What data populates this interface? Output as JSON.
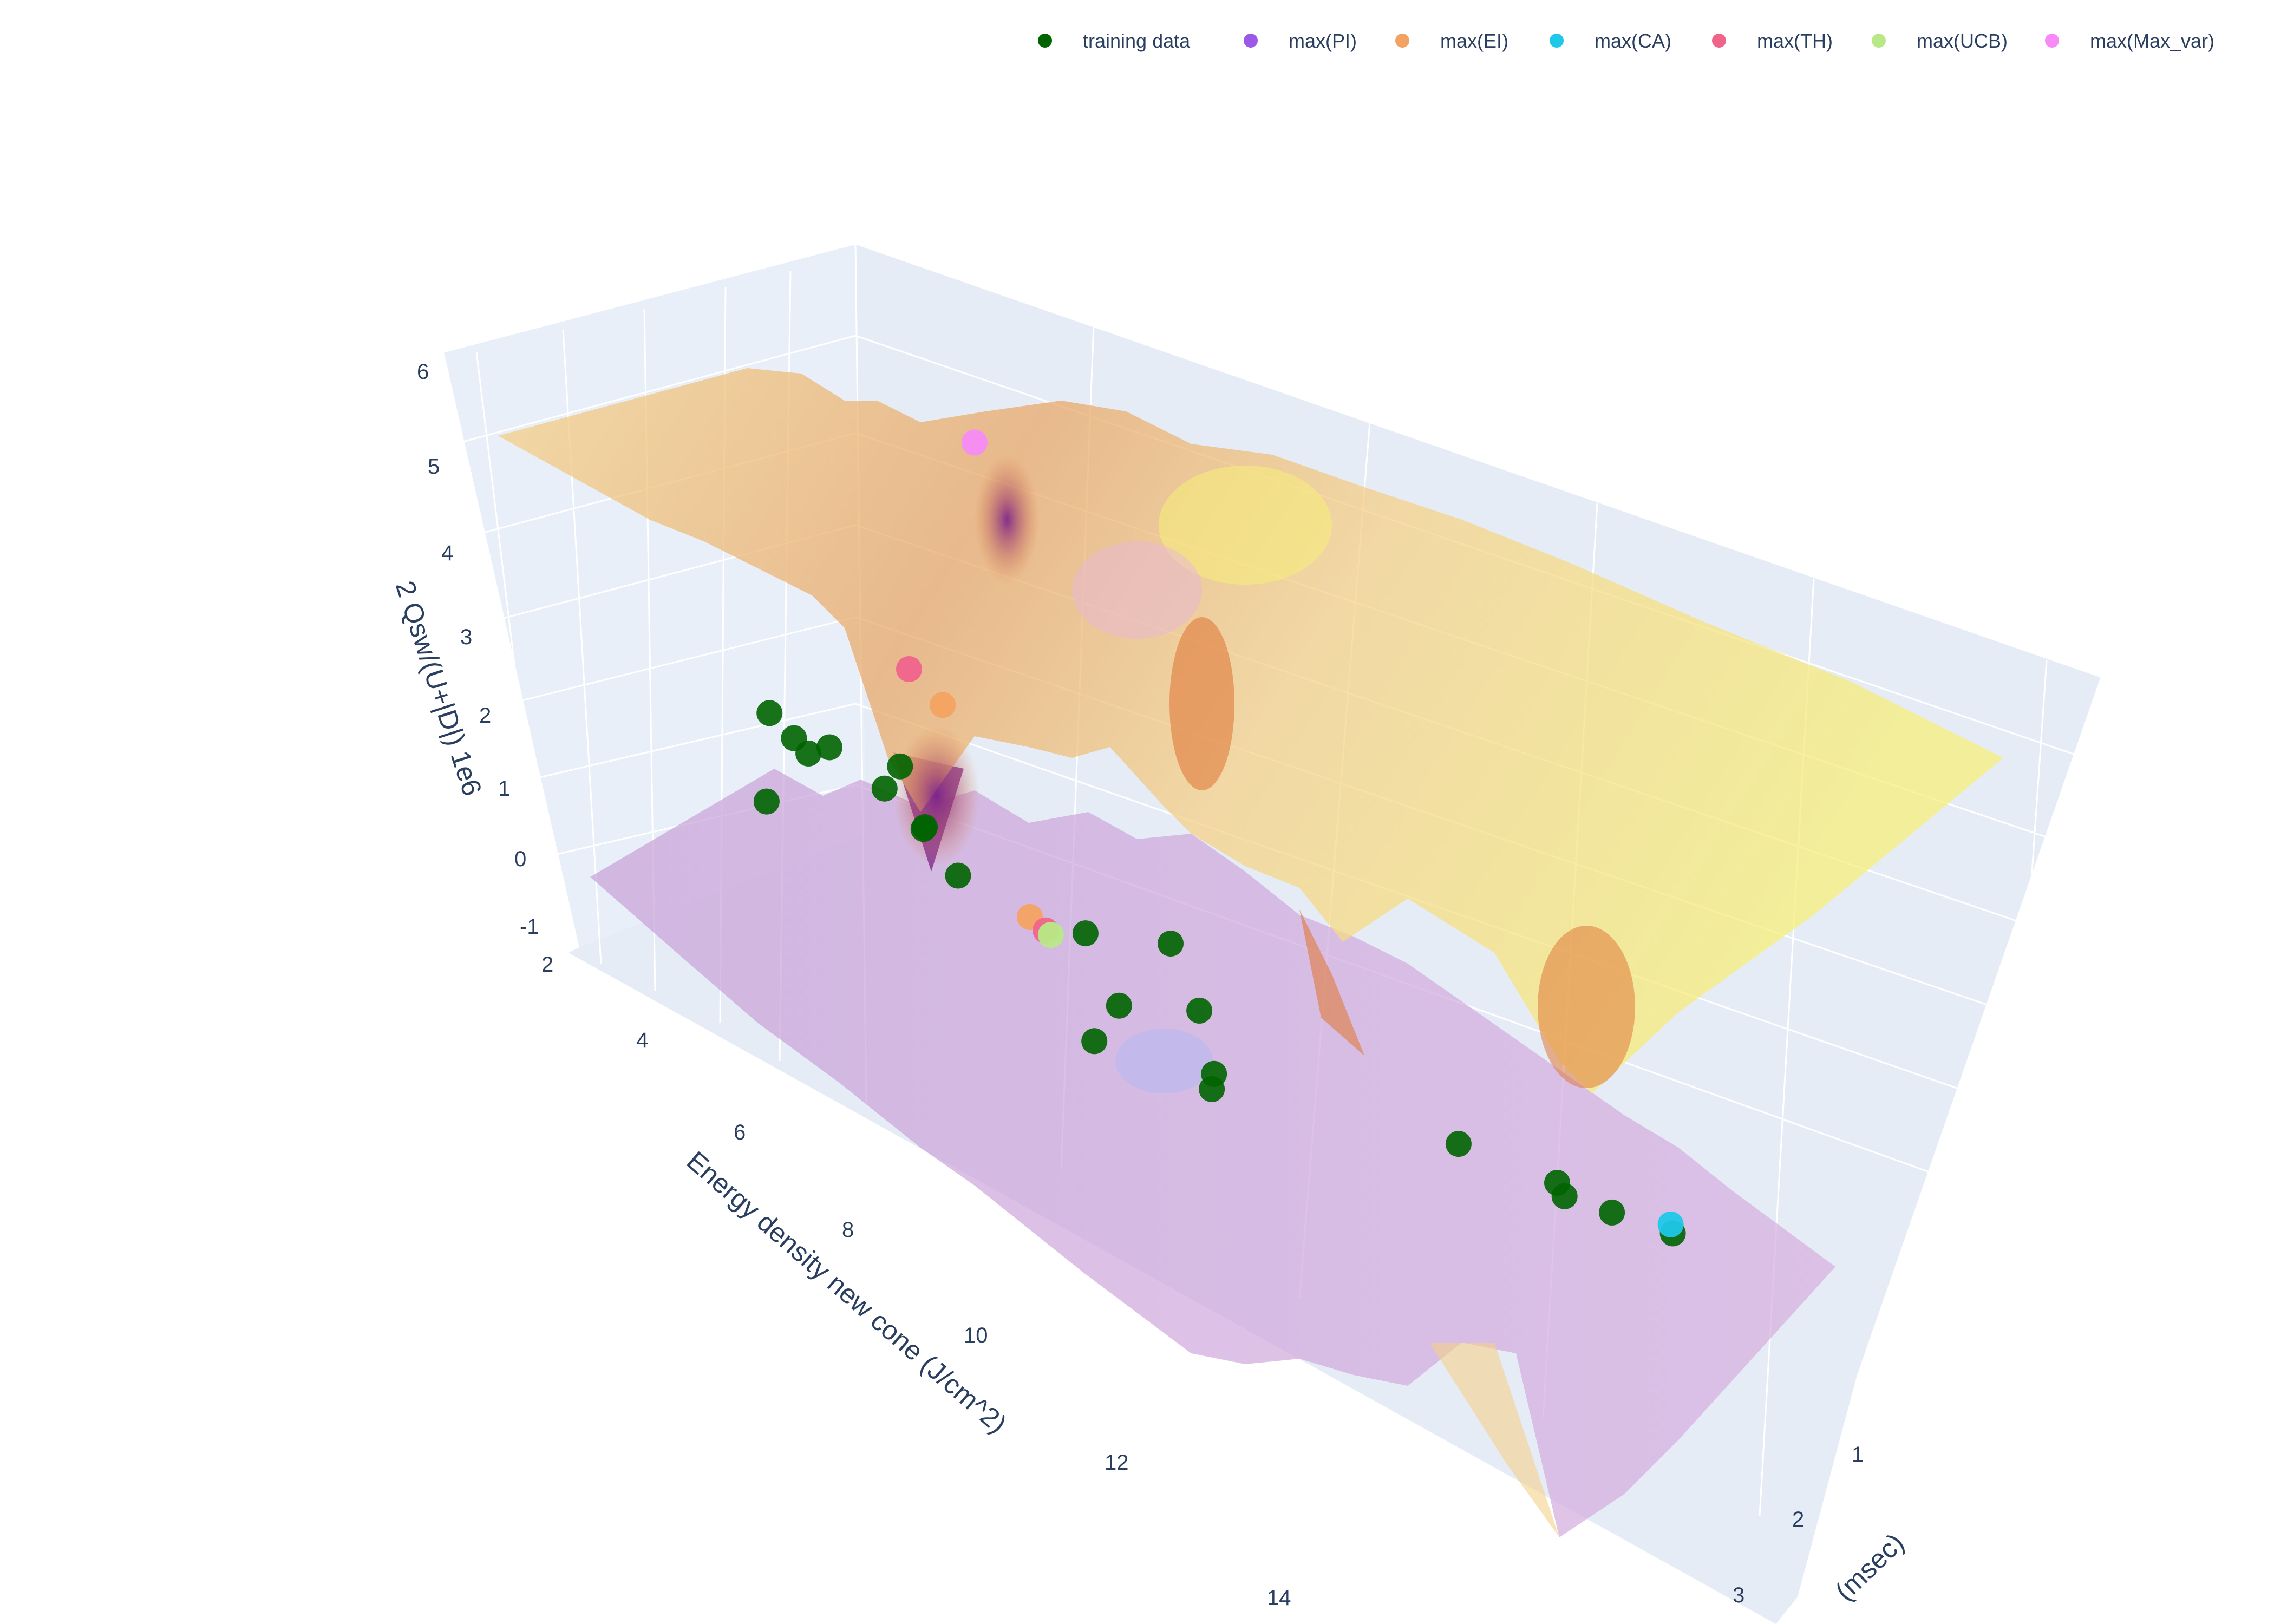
{
  "chart_data": {
    "type": "scatter",
    "subtype": "3d-surface-scatter",
    "axes": {
      "x": {
        "label": "Energy density new cone (J/cm^2)",
        "ticks": [
          2,
          4,
          6,
          8,
          10,
          12,
          14
        ],
        "range": [
          2,
          14
        ]
      },
      "y": {
        "label": "(msec)",
        "ticks": [
          1,
          2,
          3
        ],
        "range": [
          1,
          3.2
        ]
      },
      "z": {
        "label": "2 Qsw/(U+|D|) 1e6",
        "ticks": [
          -1,
          0,
          1,
          2,
          3,
          4,
          5,
          6
        ],
        "range": [
          -1,
          6
        ]
      }
    },
    "legend": {
      "placement": "top-right",
      "orientation": "horizontal",
      "items": [
        {
          "label": "training data",
          "color": "#006400"
        },
        {
          "label": "max(PI)",
          "color": "#9b59e8"
        },
        {
          "label": "max(EI)",
          "color": "#f4a261"
        },
        {
          "label": "max(CA)",
          "color": "#1ec8e8"
        },
        {
          "label": "max(TH)",
          "color": "#f0648c"
        },
        {
          "label": "max(UCB)",
          "color": "#b8e986"
        },
        {
          "label": "max(Max_var)",
          "color": "#f78af7"
        }
      ]
    },
    "surfaces": [
      {
        "role": "upper",
        "colorscale": [
          "#7a1f8a",
          "#e07a3a",
          "#f5d18a",
          "#f7ef7a"
        ],
        "opacity": 0.7
      },
      {
        "role": "lower",
        "colorscale": [
          "#7a1f8a",
          "#c8a2d8",
          "#f5d18a"
        ],
        "opacity": 0.5
      }
    ],
    "series": [
      {
        "name": "training data",
        "color": "#006400",
        "points": [
          {
            "x": 6.0,
            "y": 1.4,
            "z": 3.3
          },
          {
            "x": 5.6,
            "y": 1.3,
            "z": 3.5
          },
          {
            "x": 6.3,
            "y": 1.3,
            "z": 3.4
          },
          {
            "x": 5.9,
            "y": 1.6,
            "z": 3.0
          },
          {
            "x": 5.2,
            "y": 1.4,
            "z": 3.0
          },
          {
            "x": 6.7,
            "y": 1.1,
            "z": 3.1
          },
          {
            "x": 5.4,
            "y": 1.6,
            "z": 2.5
          },
          {
            "x": 6.1,
            "y": 1.6,
            "z": 2.4
          },
          {
            "x": 7.5,
            "y": 1.5,
            "z": 2.6
          },
          {
            "x": 5.3,
            "y": 1.7,
            "z": 2.0
          },
          {
            "x": 7.7,
            "y": 1.8,
            "z": 2.0
          },
          {
            "x": 8.0,
            "y": 2.0,
            "z": 2.0
          },
          {
            "x": 8.3,
            "y": 2.0,
            "z": 1.4
          },
          {
            "x": 6.4,
            "y": 2.0,
            "z": 0.5
          },
          {
            "x": 7.3,
            "y": 2.1,
            "z": 0.0
          },
          {
            "x": 6.6,
            "y": 2.2,
            "z": -0.2
          },
          {
            "x": 5.6,
            "y": 2.0,
            "z": -0.3
          },
          {
            "x": 8.7,
            "y": 2.6,
            "z": 0.0
          },
          {
            "x": 10.0,
            "y": 2.7,
            "z": 0.2
          },
          {
            "x": 10.1,
            "y": 2.7,
            "z": 0.1
          },
          {
            "x": 10.3,
            "y": 2.8,
            "z": 0.0
          },
          {
            "x": 10.8,
            "y": 2.9,
            "z": 0.0
          }
        ]
      },
      {
        "name": "max(PI)",
        "color": "#9b59e8",
        "points": []
      },
      {
        "name": "max(EI)",
        "color": "#f4a261",
        "points": [
          {
            "x": 5.6,
            "y": 1.8,
            "z": 3.5
          },
          {
            "x": 7.3,
            "y": 1.7,
            "z": 2.0
          }
        ]
      },
      {
        "name": "max(CA)",
        "color": "#1ec8e8",
        "points": [
          {
            "x": 10.8,
            "y": 2.9,
            "z": 0.1
          }
        ]
      },
      {
        "name": "max(TH)",
        "color": "#f0648c",
        "points": [
          {
            "x": 5.0,
            "y": 1.8,
            "z": 3.6
          },
          {
            "x": 7.6,
            "y": 1.7,
            "z": 2.0
          }
        ]
      },
      {
        "name": "max(UCB)",
        "color": "#b8e986",
        "points": [
          {
            "x": 7.7,
            "y": 1.7,
            "z": 2.0
          }
        ]
      },
      {
        "name": "max(Max_var)",
        "color": "#f78af7",
        "points": [
          {
            "x": 2.0,
            "y": 2.5,
            "z": 4.5
          }
        ]
      }
    ],
    "grid": true
  }
}
